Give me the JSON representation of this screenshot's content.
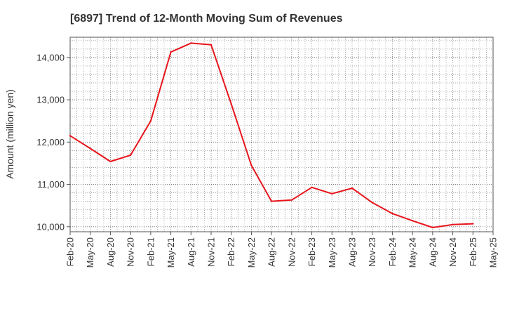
{
  "chart_data": {
    "type": "line",
    "title": "[6897]  Trend of 12-Month Moving Sum of Revenues",
    "ylabel": "Amount (million yen)",
    "xlabel": "",
    "ylim": [
      9880,
      14480
    ],
    "yticks": [
      10000,
      11000,
      12000,
      13000,
      14000
    ],
    "ytick_labels": [
      "10,000",
      "11,000",
      "12,000",
      "13,000",
      "14,000"
    ],
    "xtick_labels": [
      "Feb-20",
      "May-20",
      "Aug-20",
      "Nov-20",
      "Feb-21",
      "May-21",
      "Aug-21",
      "Nov-21",
      "Feb-22",
      "May-22",
      "Aug-22",
      "Nov-22",
      "Feb-23",
      "May-23",
      "Aug-23",
      "Nov-23",
      "Feb-24",
      "May-24",
      "Aug-24",
      "Nov-24",
      "Feb-25",
      "May-25"
    ],
    "grid": true,
    "series": [
      {
        "values": [
          12150,
          11850,
          11540,
          11690,
          12500,
          14130,
          14340,
          14300,
          12900,
          11450,
          10600,
          10630,
          10930,
          10780,
          10910,
          10570,
          10310,
          10140,
          9980,
          10050,
          10070
        ],
        "color": "#e8141c"
      }
    ]
  }
}
